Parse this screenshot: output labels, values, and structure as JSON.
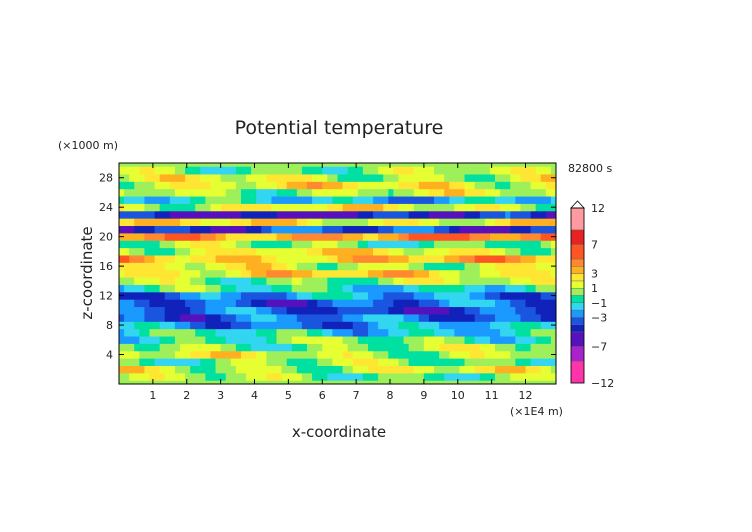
{
  "chart_data": {
    "type": "heatmap",
    "title": "Potential temperature",
    "xlabel": "x-coordinate",
    "ylabel": "z-coordinate",
    "x_unit": "(×1E4 m)",
    "y_unit": "(×1000 m)",
    "time_label": "82800 s",
    "xlim": [
      0,
      12.9
    ],
    "ylim": [
      0,
      30
    ],
    "x_ticks": [
      1,
      2,
      3,
      4,
      5,
      6,
      7,
      8,
      9,
      10,
      11,
      12
    ],
    "y_ticks": [
      4,
      8,
      12,
      16,
      20,
      24,
      28
    ],
    "colorbar": {
      "levels": [
        -12,
        -9,
        -7,
        -5,
        -4,
        -3,
        -2,
        -1,
        0,
        1,
        2,
        3,
        4,
        5,
        7,
        9,
        12
      ],
      "labels": [
        12,
        7,
        3,
        1,
        -1,
        -3,
        -7,
        -12
      ],
      "colors": [
        "#ff33aa",
        "#aa22cc",
        "#5511bb",
        "#1122bb",
        "#1a55e0",
        "#1a99ff",
        "#33d6f0",
        "#00e0a0",
        "#9ef05a",
        "#e6ff33",
        "#ffe633",
        "#ffb020",
        "#ff8830",
        "#ff5522",
        "#e62222",
        "#ff9aa0"
      ]
    },
    "bands": [
      {
        "z": 1,
        "value": 0.3
      },
      {
        "z": 2,
        "value": 1.3
      },
      {
        "z": 3,
        "value": 0.2
      },
      {
        "z": 4,
        "value": 1.2
      },
      {
        "z": 5,
        "value": 0.5
      },
      {
        "z": 6,
        "value": -0.2
      },
      {
        "z": 7,
        "value": -1.2
      },
      {
        "z": 8,
        "value": -2.5
      },
      {
        "z": 9,
        "value": -3.3
      },
      {
        "z": 10,
        "value": -3.7
      },
      {
        "z": 11,
        "value": -3.4
      },
      {
        "z": 12,
        "value": -2.6
      },
      {
        "z": 13,
        "value": -0.8
      },
      {
        "z": 14,
        "value": 0.6
      },
      {
        "z": 15,
        "value": 2.5
      },
      {
        "z": 16,
        "value": 1.3
      },
      {
        "z": 17,
        "value": 3.2
      },
      {
        "z": 18,
        "value": 1.8
      },
      {
        "z": 19,
        "value": 0.2
      },
      {
        "z": 20,
        "value": 4.2
      },
      {
        "z": 21,
        "value": -4.0
      },
      {
        "z": 22,
        "value": 2.0
      },
      {
        "z": 23,
        "value": -5.0
      },
      {
        "z": 24,
        "value": 1.6
      },
      {
        "z": 25,
        "value": -1.6
      },
      {
        "z": 26,
        "value": 1.0
      },
      {
        "z": 27,
        "value": 2.0
      },
      {
        "z": 28,
        "value": 1.2
      },
      {
        "z": 29,
        "value": 0.4
      }
    ]
  }
}
